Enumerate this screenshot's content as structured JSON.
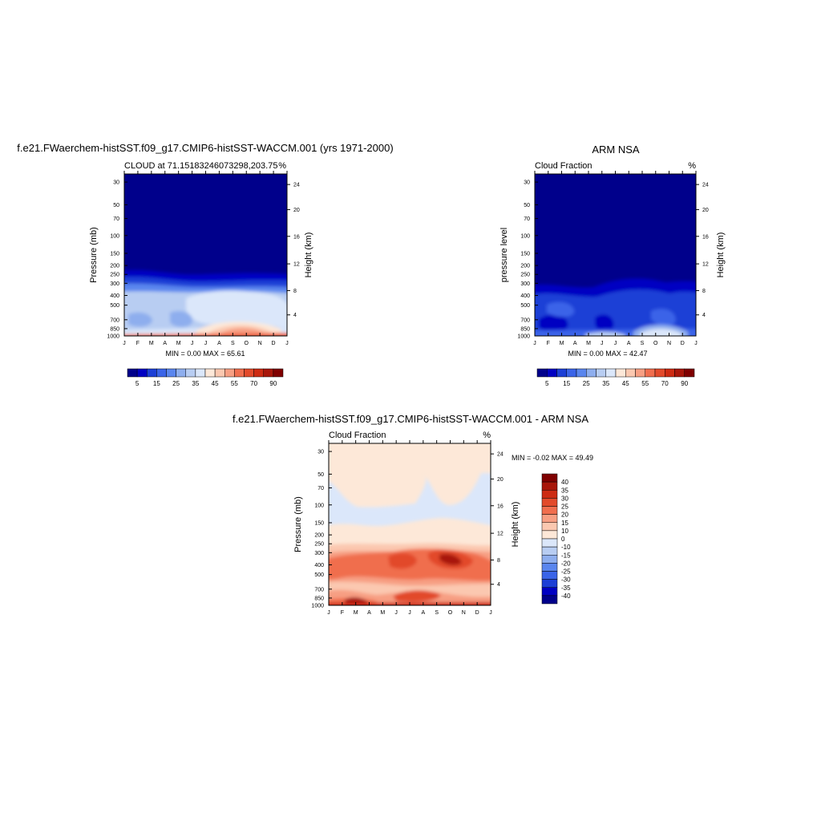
{
  "colors": {
    "seq_colorbar": [
      "#00008b",
      "#0000c2",
      "#1c3fd6",
      "#3a64e8",
      "#5a86ee",
      "#8eaeee",
      "#b8cdf2",
      "#dbe7fa",
      "#fde8d8",
      "#fbc8b0",
      "#f79f83",
      "#f06e4e",
      "#e24a2b",
      "#cd2b12",
      "#a8160a",
      "#800000"
    ],
    "diff_colorbar": [
      "#00008b",
      "#0000c2",
      "#1c3fd6",
      "#3a64e8",
      "#5a86ee",
      "#8eaeee",
      "#b8cdf2",
      "#dbe7fa",
      "#fde8d8",
      "#fbc8b0",
      "#f79f83",
      "#f06e4e",
      "#e24a2b",
      "#cd2b12",
      "#a8160a",
      "#800000"
    ]
  },
  "chart_data": [
    {
      "type": "heatmap",
      "title": "f.e21.FWaerchem-histSST.f09_g17.CMIP6-histSST-WACCM.001 (yrs 1971-2000)",
      "subtitle_left": "CLOUD at 71.15183246073298,203.75",
      "subtitle_right": "%",
      "ylabel": "Pressure (mb)",
      "ylabel_right": "Height (km)",
      "months": [
        "J",
        "F",
        "M",
        "A",
        "M",
        "J",
        "J",
        "A",
        "S",
        "O",
        "N",
        "D",
        "J"
      ],
      "pressure_ticks": [
        "30",
        "50",
        "70",
        "100",
        "150",
        "200",
        "250",
        "300",
        "400",
        "500",
        "700",
        "850",
        "1000"
      ],
      "height_ticks": [
        "24",
        "20",
        "16",
        "12",
        "8",
        "4"
      ],
      "min_max": "MIN =   0.00 MAX =  65.61",
      "colorbar_labels": [
        "5",
        "15",
        "25",
        "35",
        "45",
        "55",
        "70",
        "90"
      ]
    },
    {
      "type": "heatmap",
      "title": "ARM NSA",
      "subtitle_left": "Cloud Fraction",
      "subtitle_right": "%",
      "ylabel": "pressure level",
      "ylabel_right": "Height (km)",
      "months": [
        "J",
        "F",
        "M",
        "A",
        "M",
        "J",
        "J",
        "A",
        "S",
        "O",
        "N",
        "D",
        "J"
      ],
      "pressure_ticks": [
        "30",
        "50",
        "70",
        "100",
        "150",
        "200",
        "250",
        "300",
        "400",
        "500",
        "700",
        "850",
        "1000"
      ],
      "height_ticks": [
        "24",
        "20",
        "16",
        "12",
        "8",
        "4"
      ],
      "min_max": "MIN =   0.00 MAX =  42.47",
      "colorbar_labels": [
        "5",
        "15",
        "25",
        "35",
        "45",
        "55",
        "70",
        "90"
      ]
    },
    {
      "type": "heatmap",
      "title": "f.e21.FWaerchem-histSST.f09_g17.CMIP6-histSST-WACCM.001 - ARM NSA",
      "subtitle_left": "Cloud Fraction",
      "subtitle_right": "%",
      "ylabel": "Pressure (mb)",
      "ylabel_right": "Height (km)",
      "months": [
        "J",
        "F",
        "M",
        "A",
        "M",
        "J",
        "J",
        "A",
        "S",
        "O",
        "N",
        "D",
        "J"
      ],
      "pressure_ticks": [
        "30",
        "50",
        "70",
        "100",
        "150",
        "200",
        "250",
        "300",
        "400",
        "500",
        "700",
        "850",
        "1000"
      ],
      "height_ticks": [
        "24",
        "20",
        "16",
        "12",
        "8",
        "4"
      ],
      "min_max": "MIN =  -0.02 MAX =  49.49",
      "colorbar_labels": [
        "40",
        "35",
        "30",
        "25",
        "20",
        "15",
        "10",
        "0",
        "-10",
        "-15",
        "-20",
        "-25",
        "-30",
        "-35",
        "-40"
      ]
    }
  ]
}
